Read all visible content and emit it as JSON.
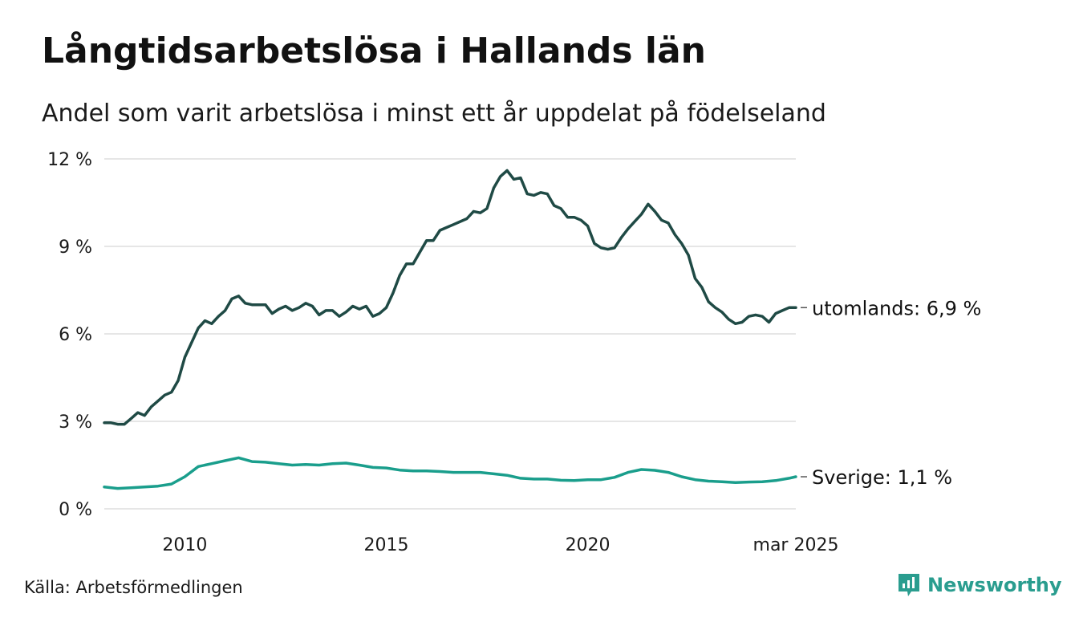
{
  "header": {
    "title": "Långtidsarbetslösa i Hallands län",
    "subtitle": "Andel som varit arbetslösa i minst ett år uppdelat på födelseland"
  },
  "footer": {
    "source": "Källa: Arbetsförmedlingen",
    "brand": "Newsworthy"
  },
  "colors": {
    "utomlands": "#1f4a45",
    "sverige": "#1a9e8c",
    "grid": "#dddddd",
    "brand": "#2a9d8f"
  },
  "chart_data": {
    "type": "line",
    "title": "Långtidsarbetslösa i Hallands län",
    "subtitle": "Andel som varit arbetslösa i minst ett år uppdelat på födelseland",
    "ylim": [
      0,
      12
    ],
    "xlim": [
      "2008-01",
      "2025-03"
    ],
    "y_ticks": [
      {
        "value": 0,
        "label": "0 %"
      },
      {
        "value": 3,
        "label": "3 %"
      },
      {
        "value": 6,
        "label": "6 %"
      },
      {
        "value": 9,
        "label": "9 %"
      },
      {
        "value": 12,
        "label": "12 %"
      }
    ],
    "x_ticks": [
      {
        "value": "2010-01",
        "label": "2010"
      },
      {
        "value": "2015-01",
        "label": "2015"
      },
      {
        "value": "2020-01",
        "label": "2020"
      },
      {
        "value": "2025-03",
        "label": "mar 2025"
      }
    ],
    "grid": true,
    "legend": "end-of-line labels",
    "series": [
      {
        "name": "utomlands",
        "end_label": "utomlands: 6,9 %",
        "color": "#1f4a45",
        "points": [
          [
            "2008-01",
            2.95
          ],
          [
            "2008-03",
            2.95
          ],
          [
            "2008-05",
            2.9
          ],
          [
            "2008-07",
            2.9
          ],
          [
            "2008-09",
            3.1
          ],
          [
            "2008-11",
            3.3
          ],
          [
            "2009-01",
            3.2
          ],
          [
            "2009-03",
            3.5
          ],
          [
            "2009-05",
            3.7
          ],
          [
            "2009-07",
            3.9
          ],
          [
            "2009-09",
            4.0
          ],
          [
            "2009-11",
            4.4
          ],
          [
            "2010-01",
            5.2
          ],
          [
            "2010-03",
            5.7
          ],
          [
            "2010-05",
            6.2
          ],
          [
            "2010-07",
            6.45
          ],
          [
            "2010-09",
            6.35
          ],
          [
            "2010-11",
            6.6
          ],
          [
            "2011-01",
            6.8
          ],
          [
            "2011-03",
            7.2
          ],
          [
            "2011-05",
            7.3
          ],
          [
            "2011-07",
            7.05
          ],
          [
            "2011-09",
            7.0
          ],
          [
            "2011-11",
            7.0
          ],
          [
            "2012-01",
            7.0
          ],
          [
            "2012-03",
            6.7
          ],
          [
            "2012-05",
            6.85
          ],
          [
            "2012-07",
            6.95
          ],
          [
            "2012-09",
            6.8
          ],
          [
            "2012-11",
            6.9
          ],
          [
            "2013-01",
            7.05
          ],
          [
            "2013-03",
            6.95
          ],
          [
            "2013-05",
            6.65
          ],
          [
            "2013-07",
            6.8
          ],
          [
            "2013-09",
            6.8
          ],
          [
            "2013-11",
            6.6
          ],
          [
            "2014-01",
            6.75
          ],
          [
            "2014-03",
            6.95
          ],
          [
            "2014-05",
            6.85
          ],
          [
            "2014-07",
            6.95
          ],
          [
            "2014-09",
            6.6
          ],
          [
            "2014-11",
            6.7
          ],
          [
            "2015-01",
            6.9
          ],
          [
            "2015-03",
            7.4
          ],
          [
            "2015-05",
            8.0
          ],
          [
            "2015-07",
            8.4
          ],
          [
            "2015-09",
            8.4
          ],
          [
            "2015-11",
            8.8
          ],
          [
            "2016-01",
            9.2
          ],
          [
            "2016-03",
            9.2
          ],
          [
            "2016-05",
            9.55
          ],
          [
            "2016-07",
            9.65
          ],
          [
            "2016-09",
            9.75
          ],
          [
            "2016-11",
            9.85
          ],
          [
            "2017-01",
            9.95
          ],
          [
            "2017-03",
            10.2
          ],
          [
            "2017-05",
            10.15
          ],
          [
            "2017-07",
            10.3
          ],
          [
            "2017-09",
            11.0
          ],
          [
            "2017-11",
            11.4
          ],
          [
            "2018-01",
            11.6
          ],
          [
            "2018-03",
            11.3
          ],
          [
            "2018-05",
            11.35
          ],
          [
            "2018-07",
            10.8
          ],
          [
            "2018-09",
            10.75
          ],
          [
            "2018-11",
            10.85
          ],
          [
            "2019-01",
            10.8
          ],
          [
            "2019-03",
            10.4
          ],
          [
            "2019-05",
            10.3
          ],
          [
            "2019-07",
            10.0
          ],
          [
            "2019-09",
            10.0
          ],
          [
            "2019-11",
            9.9
          ],
          [
            "2020-01",
            9.7
          ],
          [
            "2020-03",
            9.1
          ],
          [
            "2020-05",
            8.95
          ],
          [
            "2020-07",
            8.9
          ],
          [
            "2020-09",
            8.95
          ],
          [
            "2020-11",
            9.3
          ],
          [
            "2021-01",
            9.6
          ],
          [
            "2021-03",
            9.85
          ],
          [
            "2021-05",
            10.1
          ],
          [
            "2021-07",
            10.45
          ],
          [
            "2021-09",
            10.2
          ],
          [
            "2021-11",
            9.9
          ],
          [
            "2022-01",
            9.8
          ],
          [
            "2022-03",
            9.4
          ],
          [
            "2022-05",
            9.1
          ],
          [
            "2022-07",
            8.7
          ],
          [
            "2022-09",
            7.9
          ],
          [
            "2022-11",
            7.6
          ],
          [
            "2023-01",
            7.1
          ],
          [
            "2023-03",
            6.9
          ],
          [
            "2023-05",
            6.75
          ],
          [
            "2023-07",
            6.5
          ],
          [
            "2023-09",
            6.35
          ],
          [
            "2023-11",
            6.4
          ],
          [
            "2024-01",
            6.6
          ],
          [
            "2024-03",
            6.65
          ],
          [
            "2024-05",
            6.6
          ],
          [
            "2024-07",
            6.4
          ],
          [
            "2024-09",
            6.7
          ],
          [
            "2024-11",
            6.8
          ],
          [
            "2025-01",
            6.9
          ],
          [
            "2025-03",
            6.9
          ]
        ]
      },
      {
        "name": "Sverige",
        "end_label": "Sverige: 1,1 %",
        "color": "#1a9e8c",
        "points": [
          [
            "2008-01",
            0.75
          ],
          [
            "2008-05",
            0.7
          ],
          [
            "2008-09",
            0.72
          ],
          [
            "2009-01",
            0.75
          ],
          [
            "2009-05",
            0.78
          ],
          [
            "2009-09",
            0.85
          ],
          [
            "2010-01",
            1.1
          ],
          [
            "2010-05",
            1.45
          ],
          [
            "2010-09",
            1.55
          ],
          [
            "2011-01",
            1.65
          ],
          [
            "2011-05",
            1.75
          ],
          [
            "2011-09",
            1.62
          ],
          [
            "2012-01",
            1.6
          ],
          [
            "2012-05",
            1.55
          ],
          [
            "2012-09",
            1.5
          ],
          [
            "2013-01",
            1.52
          ],
          [
            "2013-05",
            1.5
          ],
          [
            "2013-09",
            1.55
          ],
          [
            "2014-01",
            1.57
          ],
          [
            "2014-05",
            1.5
          ],
          [
            "2014-09",
            1.42
          ],
          [
            "2015-01",
            1.4
          ],
          [
            "2015-05",
            1.33
          ],
          [
            "2015-09",
            1.3
          ],
          [
            "2016-01",
            1.3
          ],
          [
            "2016-05",
            1.28
          ],
          [
            "2016-09",
            1.25
          ],
          [
            "2017-01",
            1.25
          ],
          [
            "2017-05",
            1.25
          ],
          [
            "2017-09",
            1.2
          ],
          [
            "2018-01",
            1.15
          ],
          [
            "2018-05",
            1.05
          ],
          [
            "2018-09",
            1.02
          ],
          [
            "2019-01",
            1.02
          ],
          [
            "2019-05",
            0.98
          ],
          [
            "2019-09",
            0.97
          ],
          [
            "2020-01",
            1.0
          ],
          [
            "2020-05",
            1.0
          ],
          [
            "2020-09",
            1.08
          ],
          [
            "2021-01",
            1.25
          ],
          [
            "2021-05",
            1.35
          ],
          [
            "2021-09",
            1.32
          ],
          [
            "2022-01",
            1.25
          ],
          [
            "2022-05",
            1.1
          ],
          [
            "2022-09",
            1.0
          ],
          [
            "2023-01",
            0.95
          ],
          [
            "2023-05",
            0.93
          ],
          [
            "2023-09",
            0.9
          ],
          [
            "2024-01",
            0.92
          ],
          [
            "2024-05",
            0.93
          ],
          [
            "2024-09",
            0.97
          ],
          [
            "2025-01",
            1.05
          ],
          [
            "2025-03",
            1.1
          ]
        ]
      }
    ]
  }
}
